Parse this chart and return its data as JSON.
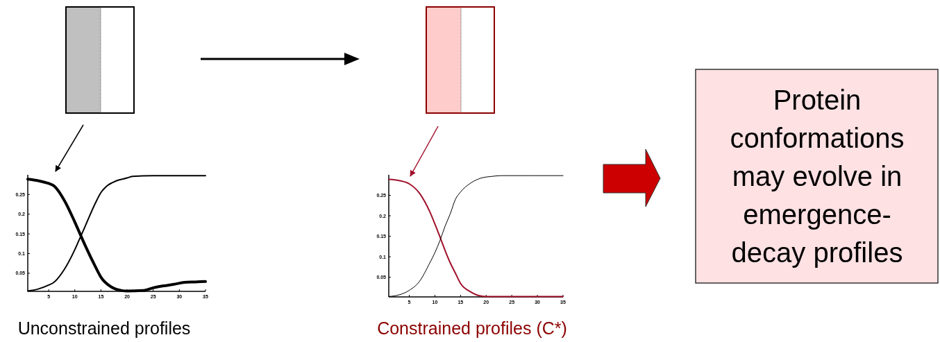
{
  "chart_data": [
    {
      "type": "line",
      "xlabel": "Unconstrained profiles",
      "xlim": [
        1,
        35
      ],
      "ylim": [
        0.004,
        0.3
      ],
      "xticks": [
        5,
        10,
        15,
        20,
        25,
        30,
        35
      ],
      "yticks": [
        0.05,
        0.1,
        0.15,
        0.2,
        0.25
      ],
      "grid": false,
      "series": [
        {
          "color": "#000000",
          "x": [
            1,
            3,
            5,
            6,
            8,
            10,
            11,
            12,
            14,
            15,
            17,
            19,
            20,
            23,
            25,
            27,
            29,
            31,
            33,
            35
          ],
          "values": [
            0.289,
            0.285,
            0.278,
            0.272,
            0.235,
            0.18,
            0.15,
            0.12,
            0.065,
            0.04,
            0.015,
            0.006,
            0.005,
            0.006,
            0.013,
            0.018,
            0.022,
            0.027,
            0.028,
            0.029
          ]
        },
        {
          "color": "#000000",
          "x": [
            1,
            3,
            5,
            6,
            8,
            10,
            11,
            12,
            14,
            15,
            16,
            18,
            20,
            21,
            25,
            35
          ],
          "values": [
            0.005,
            0.01,
            0.02,
            0.027,
            0.06,
            0.11,
            0.14,
            0.17,
            0.23,
            0.255,
            0.27,
            0.285,
            0.292,
            0.296,
            0.298,
            0.298
          ]
        }
      ]
    },
    {
      "type": "line",
      "xlabel": "Constrained profiles (C*)",
      "xlim": [
        1,
        35
      ],
      "ylim": [
        0.002,
        0.3
      ],
      "xticks": [
        5,
        10,
        15,
        20,
        25,
        30,
        35
      ],
      "yticks": [
        0.05,
        0.1,
        0.15,
        0.2,
        0.25
      ],
      "grid": false,
      "series": [
        {
          "color": "#a0102a",
          "x": [
            1,
            3,
            5,
            7,
            9,
            10,
            11,
            12,
            13,
            14,
            15,
            17,
            19,
            20,
            35
          ],
          "values": [
            0.289,
            0.286,
            0.278,
            0.255,
            0.21,
            0.18,
            0.148,
            0.115,
            0.085,
            0.06,
            0.035,
            0.014,
            0.004,
            0.003,
            0.003
          ]
        },
        {
          "color": "#000000",
          "x": [
            1,
            3,
            5,
            7,
            9,
            10,
            11,
            12,
            13,
            14,
            15,
            17,
            19,
            21,
            23,
            35
          ],
          "values": [
            0.003,
            0.007,
            0.018,
            0.04,
            0.085,
            0.11,
            0.14,
            0.175,
            0.205,
            0.24,
            0.258,
            0.28,
            0.292,
            0.296,
            0.298,
            0.298
          ]
        }
      ]
    },
    {
      "type": "other",
      "annotations": [
        "Protein conformations may evolve in emergence-decay profiles"
      ]
    }
  ]
}
